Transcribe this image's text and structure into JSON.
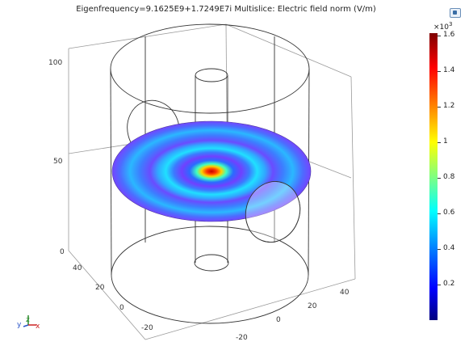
{
  "title": "Eigenfrequency=9.1625E9+1.7249E7i   Multislice: Electric field norm (V/m)",
  "colorbar": {
    "exponent_base": "×10",
    "exponent_power": "3",
    "ticks": [
      "1.6",
      "1.4",
      "1.2",
      "1",
      "0.8",
      "0.6",
      "0.4",
      "0.2"
    ],
    "colors": [
      "#00007f",
      "#0000ff",
      "#0080ff",
      "#00ffff",
      "#80ff80",
      "#ffff00",
      "#ff8000",
      "#ff0000",
      "#7f0000"
    ]
  },
  "axes": {
    "z_ticks": [
      "100",
      "50",
      "0"
    ],
    "y_ticks": [
      "40",
      "20",
      "0",
      "-20"
    ],
    "x_ticks": [
      "40",
      "20",
      "0",
      "-20"
    ]
  },
  "triad": {
    "y": "y",
    "z": "z",
    "x": "x"
  },
  "toolbar": {
    "icon": "view-settings-icon"
  }
}
